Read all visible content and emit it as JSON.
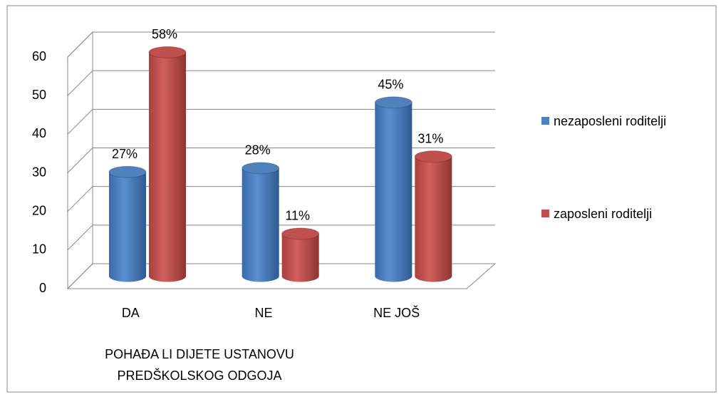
{
  "chart_data": {
    "type": "bar3d",
    "categories": [
      "DA",
      "NE",
      "NE JOŠ"
    ],
    "series": [
      {
        "name": "nezaposleni roditelji",
        "color": "#4f81bd",
        "values": [
          27,
          28,
          45
        ],
        "value_labels": [
          "27%",
          "28%",
          "45%"
        ]
      },
      {
        "name": "zaposleni roditelji",
        "color": "#c0504d",
        "values": [
          58,
          11,
          31
        ],
        "value_labels": [
          "58%",
          "11%",
          "31%"
        ]
      }
    ],
    "xlabel": "POHAĐA LI DIJETE USTANOVU PREDŠKOLSKOG ODGOJA",
    "ylim": [
      0,
      60
    ],
    "yticks": [
      0,
      10,
      20,
      30,
      40,
      50,
      60
    ],
    "grid": true,
    "legend": "right"
  }
}
